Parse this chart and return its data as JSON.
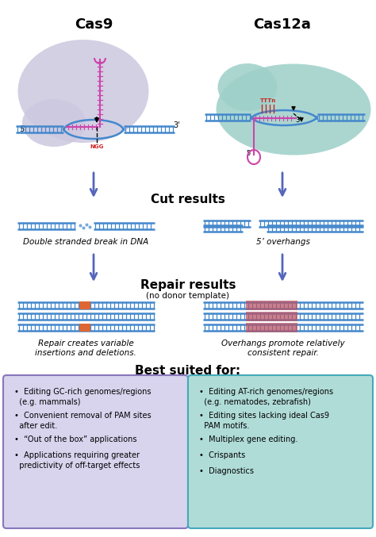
{
  "title_cas9": "Cas9",
  "title_cas12a": "Cas12a",
  "cut_results_label": "Cut results",
  "repair_results_label": "Repair results",
  "repair_results_sub": "(no donor template)",
  "cut_cas9_desc": "Double stranded break in DNA",
  "cut_cas12a_desc": "5’ overhangs",
  "repair_cas9_desc": "Repair creates variable\ninsertions and deletions.",
  "repair_cas12a_desc": "Overhangs promote relatively\nconsistent repair.",
  "best_suited_label": "Best suited for:",
  "cas9_bullets": [
    "Editing GC-rich genomes/regions\n  (e.g. mammals)",
    "Convenient removal of PAM sites\n  after edit.",
    "“Out of the box” applications",
    "Applications requiring greater\n  predictivity of off-target effects"
  ],
  "cas12a_bullets": [
    "Editing AT-rich genomes/regions\n  (e.g. nematodes, zebrafish)",
    "Editing sites lacking ideal Cas9\n  PAM motifs.",
    "Multiplex gene editing.",
    "Crispants",
    "Diagnostics"
  ],
  "bg_color": "#ffffff",
  "cas9_blob_color": "#ccc8e0",
  "cas12a_blob_color": "#9dcfc8",
  "arrow_color": "#5566bb",
  "dna_color": "#4488cc",
  "dna_bg_color": "#aaccee",
  "guide_color": "#cc44aa",
  "pam_color": "#cc2222",
  "repair_insert_cas9": "#dd6633",
  "repair_insert_cas12a": "#bb5566",
  "box_cas9_fill": "#d8d4ee",
  "box_cas9_edge": "#8877bb",
  "box_cas12a_fill": "#b0dcd8",
  "box_cas12a_edge": "#44aabb",
  "text_color": "#222222"
}
